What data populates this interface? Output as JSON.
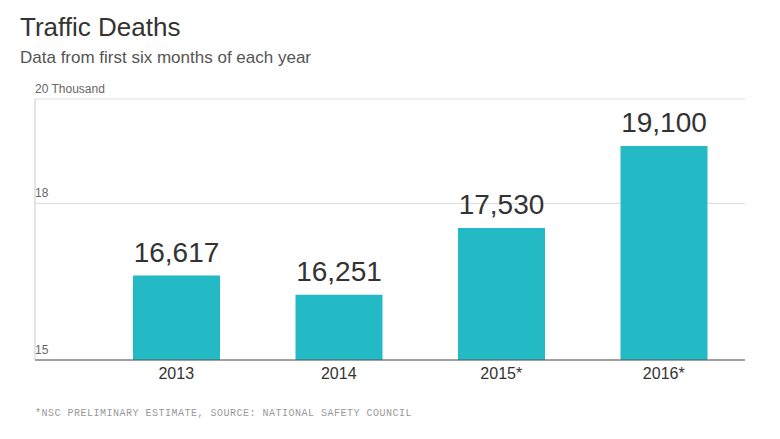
{
  "chart_data": {
    "type": "bar",
    "title": "Traffic Deaths",
    "subtitle": "Data from first six months of each year",
    "categories": [
      "2013",
      "2014",
      "2015*",
      "2016*"
    ],
    "values": [
      16.617,
      16.251,
      17.53,
      19.1
    ],
    "value_labels": [
      "16,617",
      "16,251",
      "17,530",
      "19,100"
    ],
    "data_labels": true,
    "color": "#23bac5",
    "ylim": [
      15,
      20
    ],
    "yticks": [
      15,
      18,
      {
        "value": 20,
        "label": "20 Thousand"
      }
    ],
    "grid": true,
    "footnote": "*NSC PRELIMINARY ESTIMATE, SOURCE: NATIONAL SAFETY COUNCIL"
  }
}
